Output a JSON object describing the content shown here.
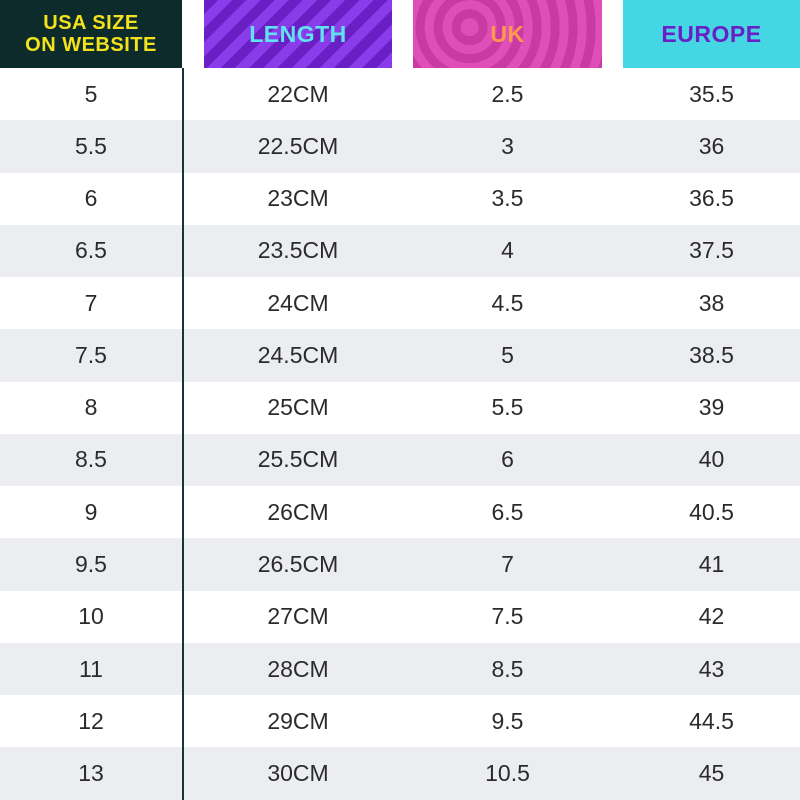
{
  "header": {
    "usa_line1": "USA SIZE",
    "usa_line2": "ON WEBSITE",
    "length": "LENGTH",
    "uk": "UK",
    "europe": "EUROPE"
  },
  "colors": {
    "usa_header_bg": "#0d2b2b",
    "usa_header_text": "#f2e21d",
    "length_header_bg": "#7a2ad8",
    "length_header_text": "#5fe3f0",
    "uk_header_bg": "#d94aad",
    "uk_header_text": "#ff9a4a",
    "europe_header_bg": "#45d6e3",
    "europe_header_text": "#6a1fc4",
    "alt_row_bg": "#ebedf0"
  },
  "rows": [
    {
      "usa": "5",
      "length": "22CM",
      "uk": "2.5",
      "europe": "35.5"
    },
    {
      "usa": "5.5",
      "length": "22.5CM",
      "uk": "3",
      "europe": "36"
    },
    {
      "usa": "6",
      "length": "23CM",
      "uk": "3.5",
      "europe": "36.5"
    },
    {
      "usa": "6.5",
      "length": "23.5CM",
      "uk": "4",
      "europe": "37.5"
    },
    {
      "usa": "7",
      "length": "24CM",
      "uk": "4.5",
      "europe": "38"
    },
    {
      "usa": "7.5",
      "length": "24.5CM",
      "uk": "5",
      "europe": "38.5"
    },
    {
      "usa": "8",
      "length": "25CM",
      "uk": "5.5",
      "europe": "39"
    },
    {
      "usa": "8.5",
      "length": "25.5CM",
      "uk": "6",
      "europe": "40"
    },
    {
      "usa": "9",
      "length": "26CM",
      "uk": "6.5",
      "europe": "40.5"
    },
    {
      "usa": "9.5",
      "length": "26.5CM",
      "uk": "7",
      "europe": "41"
    },
    {
      "usa": "10",
      "length": "27CM",
      "uk": "7.5",
      "europe": "42"
    },
    {
      "usa": "11",
      "length": "28CM",
      "uk": "8.5",
      "europe": "43"
    },
    {
      "usa": "12",
      "length": "29CM",
      "uk": "9.5",
      "europe": "44.5"
    },
    {
      "usa": "13",
      "length": "30CM",
      "uk": "10.5",
      "europe": "45"
    }
  ]
}
